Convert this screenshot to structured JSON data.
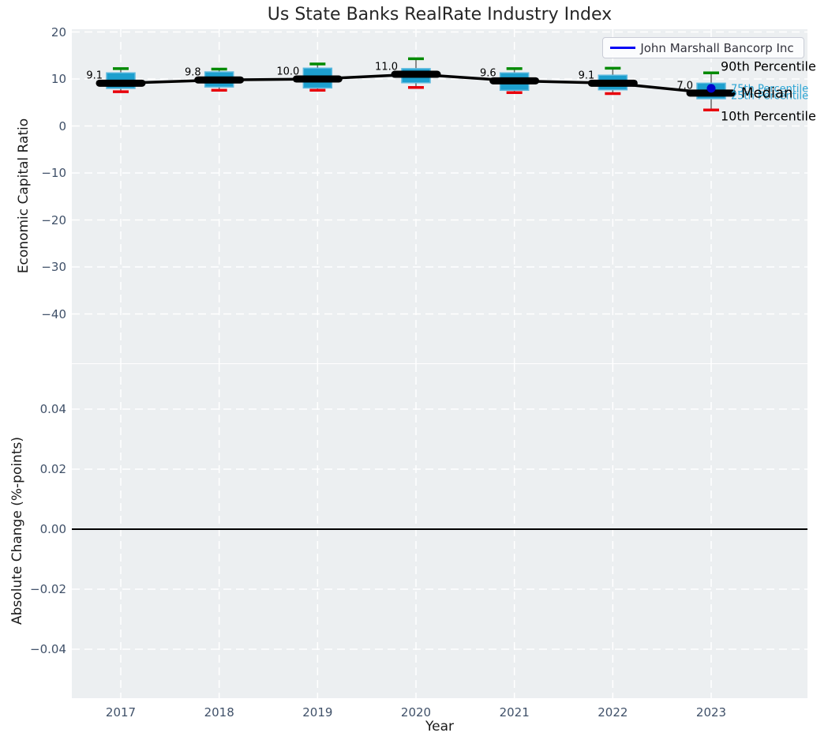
{
  "title": "Us State Banks RealRate Industry Index",
  "legend": {
    "label": "John Marshall Bancorp Inc"
  },
  "axes": {
    "xlabel": "Year",
    "xticks": [
      "2017",
      "2018",
      "2019",
      "2020",
      "2021",
      "2022",
      "2023"
    ],
    "top": {
      "ylabel": "Economic Capital Ratio",
      "yticks": [
        "20",
        "10",
        "0",
        "−10",
        "−20",
        "−30",
        "−40"
      ],
      "ytick_values": [
        20,
        10,
        0,
        -10,
        -20,
        -30,
        -40
      ]
    },
    "bottom": {
      "ylabel": "Absolute Change (%-points)",
      "yticks": [
        "0.04",
        "0.02",
        "0.00",
        "−0.02",
        "−0.04"
      ],
      "ytick_values": [
        0.04,
        0.02,
        0,
        -0.02,
        -0.04
      ]
    }
  },
  "colors": {
    "box_fill": "#1d9fce",
    "box_edge": "#5bb9de",
    "cap_90th": "#008a00",
    "cap_10th": "#e8000b",
    "whisker": "#666666",
    "median_line": "#000000",
    "company_line": "#0000f5",
    "company_dot": "#0000cc",
    "percentile_text": "#2aa4d4",
    "panel_background": "#eceff1",
    "gridline": "#ffffff"
  },
  "chart_data": {
    "type": "boxplot-line",
    "title": "Us State Banks RealRate Industry Index",
    "xlabel": "Year",
    "x": [
      2017,
      2018,
      2019,
      2020,
      2021,
      2022,
      2023
    ],
    "top_panel": {
      "ylabel": "Economic Capital Ratio",
      "ylim": [
        -50.5,
        20.7
      ],
      "percentiles": {
        "p90": [
          12.2,
          12.1,
          13.2,
          14.3,
          12.2,
          12.3,
          11.3
        ],
        "p75": [
          11.3,
          11.5,
          12.3,
          12.2,
          11.3,
          10.8,
          9.1
        ],
        "median": [
          9.1,
          9.8,
          10.0,
          11.0,
          9.6,
          9.1,
          7.0
        ],
        "p25": [
          8.0,
          8.3,
          8.1,
          9.2,
          7.6,
          7.7,
          5.8
        ],
        "p10": [
          7.3,
          7.6,
          7.6,
          8.2,
          7.1,
          6.9,
          3.4
        ]
      },
      "median_labels": [
        "9.1",
        "9.8",
        "10.0",
        "11.0",
        "9.6",
        "9.1",
        "7.0"
      ],
      "company_series": {
        "name": "John Marshall Bancorp Inc",
        "points": [
          {
            "x": 2023,
            "y": 8.0
          }
        ]
      },
      "annotations": [
        {
          "label": "90th Percentile",
          "ref": "p90",
          "style": "large"
        },
        {
          "label": "75th Percentile",
          "ref": "p75",
          "style": "small"
        },
        {
          "label": "Median",
          "ref": "median",
          "style": "xlarge"
        },
        {
          "label": "25th Percentile",
          "ref": "p25",
          "style": "small"
        },
        {
          "label": "10th Percentile",
          "ref": "p10",
          "style": "large"
        }
      ]
    },
    "bottom_panel": {
      "ylabel": "Absolute Change (%-points)",
      "ylim": [
        -0.056,
        0.055
      ],
      "zero_line": 0.0,
      "data": []
    }
  }
}
